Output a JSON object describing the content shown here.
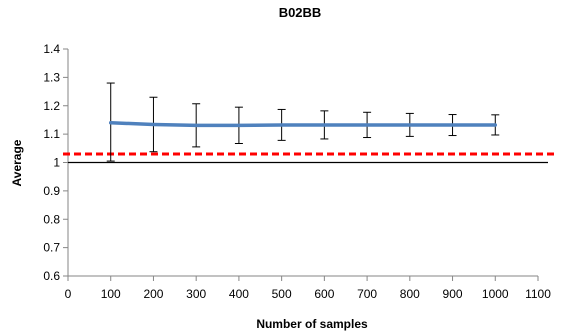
{
  "chart_data": {
    "type": "line",
    "title": "B02BB",
    "xlabel": "Number of samples",
    "ylabel": "Average",
    "xlim": [
      0,
      1100
    ],
    "ylim": [
      0.6,
      1.4
    ],
    "xticks": [
      0,
      100,
      200,
      300,
      400,
      500,
      600,
      700,
      800,
      900,
      1000,
      1100
    ],
    "yticks": [
      0.6,
      0.7,
      0.8,
      0.9,
      1,
      1.1,
      1.2,
      1.3,
      1.4
    ],
    "xtick_labels": [
      "0",
      "100",
      "200",
      "300",
      "400",
      "500",
      "600",
      "700",
      "800",
      "900",
      "1000",
      "1100"
    ],
    "ytick_labels": [
      "0.6",
      "0.7",
      "0.8",
      "0.9",
      "1",
      "1.1",
      "1.2",
      "1.3",
      "1.4"
    ],
    "grid": false,
    "series": [
      {
        "x": [
          100,
          200,
          300,
          400,
          500,
          600,
          700,
          800,
          900,
          1000
        ],
        "y": [
          1.14,
          1.134,
          1.131,
          1.131,
          1.132,
          1.132,
          1.132,
          1.132,
          1.132,
          1.132
        ],
        "error_low": [
          1.005,
          1.038,
          1.055,
          1.067,
          1.078,
          1.083,
          1.088,
          1.092,
          1.095,
          1.097
        ],
        "error_high": [
          1.28,
          1.23,
          1.207,
          1.195,
          1.187,
          1.182,
          1.177,
          1.173,
          1.169,
          1.168
        ],
        "color": "#4f81bd"
      }
    ],
    "reference_lines": [
      {
        "y": 1.0,
        "color": "#000000",
        "style": "solid"
      },
      {
        "y": 1.03,
        "color": "#ff0000",
        "style": "dashed"
      }
    ]
  }
}
